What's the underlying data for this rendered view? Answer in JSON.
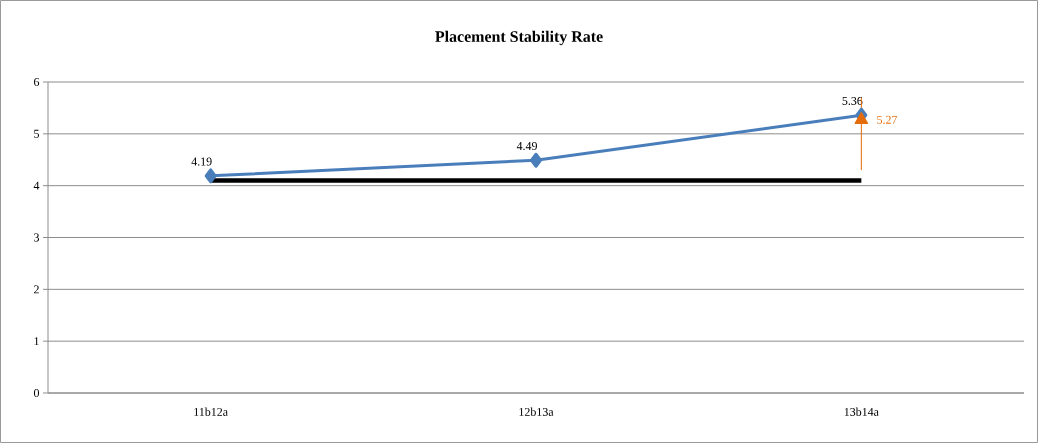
{
  "chart_data": {
    "type": "line",
    "title": "Placement Stability Rate",
    "categories": [
      "11b12a",
      "12b13a",
      "13b14a"
    ],
    "series": [
      {
        "color": "#4a7ebb",
        "values": [
          4.19,
          4.49,
          5.36
        ],
        "marker": "diamond",
        "value_labels": [
          "4.19",
          "4.49",
          "5.36"
        ]
      },
      {
        "color": "#000000",
        "values": [
          4.1,
          4.1,
          4.1
        ],
        "marker": "none"
      },
      {
        "color": "#e46c0a",
        "values": [
          null,
          null,
          5.27
        ],
        "marker": "triangle",
        "value_labels": [
          null,
          null,
          "5.27"
        ],
        "errors": [
          null,
          null,
          [
            4.3,
            5.7
          ]
        ]
      }
    ],
    "ylim": [
      0,
      6
    ],
    "yticks": [
      0,
      1,
      2,
      3,
      4,
      5,
      6
    ],
    "grid": "y",
    "line_style": "solid"
  }
}
